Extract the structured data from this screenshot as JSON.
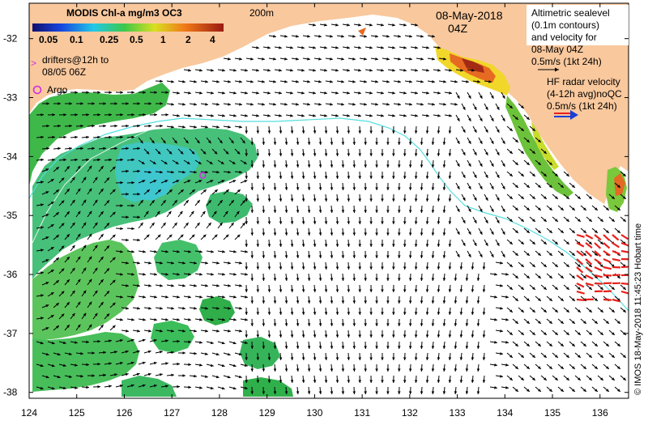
{
  "colorbar": {
    "title": "MODIS Chl-a mg/m3 OC3",
    "ticks": [
      "0.05",
      "0.1",
      "0.25",
      "0.5",
      "1",
      "2",
      "4"
    ]
  },
  "isobath_label": "200m",
  "date_line1": "08-May-2018",
  "date_line2": "04Z",
  "drifters_legend": {
    "symbol": ">",
    "line1": "drifters@12h to",
    "line2": "08/05 06Z"
  },
  "argo_legend": "Argo",
  "altimetry_legend": {
    "line1": "Altimetric sealevel",
    "line2": "(0.1m contours)",
    "line3": "and velocity for",
    "line4": "08-May 04Z",
    "line5": "0.5m/s (1kt 24h)"
  },
  "hf_radar_legend": {
    "line1": "HF radar velocity",
    "line2": "(4-12h avg)noQC",
    "line3": "0.5m/s (1kt 24h)"
  },
  "credit": "© IMOS 18-May-2018 11:45:23 Hobart time",
  "axes": {
    "x_ticks": [
      "124",
      "125",
      "126",
      "127",
      "128",
      "129",
      "130",
      "131",
      "132",
      "133",
      "134",
      "135",
      "136"
    ],
    "y_ticks": [
      "-32",
      "-33",
      "-34",
      "-35",
      "-36",
      "-37",
      "-38"
    ],
    "lon_range": [
      124,
      136.6
    ],
    "lat_range": [
      -38.1,
      -31.4
    ]
  },
  "argo_float": {
    "lon": 127.65,
    "lat": -34.32
  },
  "colors": {
    "land": "#f9c89d",
    "ocean": "#ffffff",
    "chl_green": "#3fb84a",
    "chl_cyan": "#3fc7d0",
    "current_arrow": "#000000",
    "hf_radar_arrow": "#e8201a",
    "isobath": "#55dede",
    "argo_marker": "#d22be0",
    "legend_blue": "#1a3fd6"
  }
}
